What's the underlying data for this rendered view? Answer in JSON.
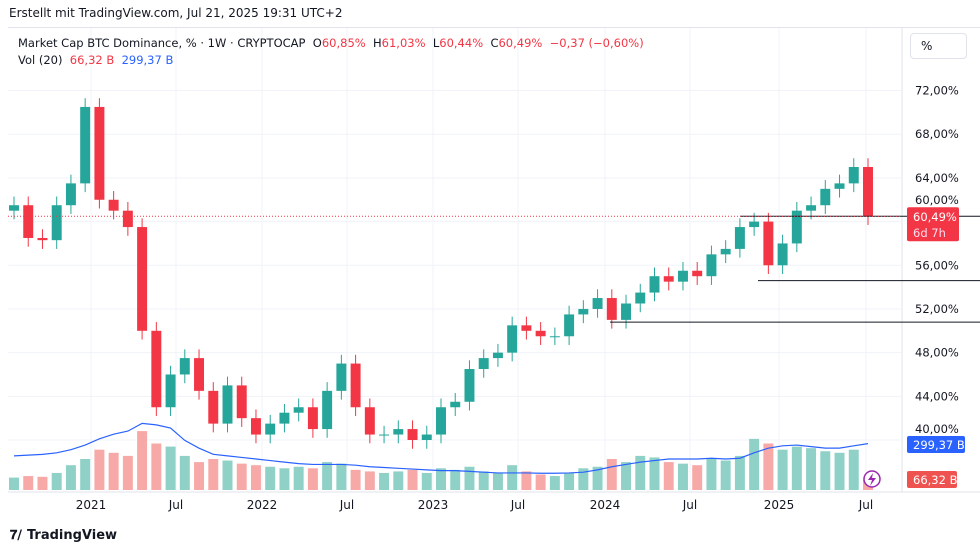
{
  "credit": "Erstellt mit TradingView.com, Jul 21, 2025 19:31 UTC+2",
  "legend": {
    "symbol": "Market Cap BTC Dominance, % · 1W · CRYPTOCAP",
    "o_label": "O",
    "o": "60,85%",
    "h_label": "H",
    "h": "61,03%",
    "l_label": "L",
    "l": "60,44%",
    "c_label": "C",
    "c": "60,49%",
    "change": "−0,37 (−0,60%)",
    "vol_label": "Vol (20)",
    "vol": "66,32 B",
    "vol_ma": "299,37 B"
  },
  "scale_button": "%",
  "footer": {
    "brand": "TradingView"
  },
  "price_tag": {
    "value": "60,49%",
    "countdown": "6d 7h"
  },
  "vol_ma_tag": "299,37 B",
  "vol_tag": "66,32 B",
  "colors": {
    "up": "#26a69a",
    "down": "#f23645",
    "vol_up": "#8fd0c7",
    "vol_down": "#f7a9a7",
    "ma": "#2962ff"
  },
  "chart_data": {
    "type": "candlestick",
    "y_ticks": [
      "72,00%",
      "68,00%",
      "64,00%",
      "60,00%",
      "56,00%",
      "52,00%",
      "48,00%",
      "44,00%",
      "40,00%"
    ],
    "x_ticks": [
      "2021",
      "Jul",
      "2022",
      "Jul",
      "2023",
      "Jul",
      "2024",
      "Jul",
      "2025",
      "Jul"
    ],
    "ylim": [
      38,
      75
    ],
    "dates": [
      "2020-07",
      "2020-08",
      "2020-09",
      "2020-10",
      "2020-11",
      "2020-12",
      "2021-01",
      "2021-02",
      "2021-03",
      "2021-04",
      "2021-05",
      "2021-06",
      "2021-07",
      "2021-08",
      "2021-09",
      "2021-10",
      "2021-11",
      "2021-12",
      "2022-01",
      "2022-02",
      "2022-03",
      "2022-04",
      "2022-05",
      "2022-06",
      "2022-07",
      "2022-08",
      "2022-09",
      "2022-10",
      "2022-11",
      "2022-12",
      "2023-01",
      "2023-02",
      "2023-03",
      "2023-04",
      "2023-05",
      "2023-06",
      "2023-07",
      "2023-08",
      "2023-09",
      "2023-10",
      "2023-11",
      "2023-12",
      "2024-01",
      "2024-02",
      "2024-03",
      "2024-04",
      "2024-05",
      "2024-06",
      "2024-07",
      "2024-08",
      "2024-09",
      "2024-10",
      "2024-11",
      "2024-12",
      "2025-01",
      "2025-02",
      "2025-03",
      "2025-04",
      "2025-05",
      "2025-06",
      "2025-07"
    ],
    "close": [
      61.5,
      58.5,
      58.3,
      61.5,
      63.5,
      70.5,
      62,
      61,
      59.5,
      50,
      43,
      46,
      47.5,
      44.5,
      41.5,
      45,
      42,
      40.5,
      41.5,
      42.5,
      43,
      41,
      44.5,
      47,
      43,
      40.5,
      40.5,
      41,
      40,
      40.5,
      43,
      43.5,
      46.5,
      47.5,
      48,
      50.5,
      50,
      49.5,
      49.5,
      51.5,
      52,
      53,
      51,
      52.5,
      53.5,
      55,
      54.5,
      55.5,
      55,
      57,
      57.5,
      59.5,
      60,
      56,
      58,
      61,
      61.5,
      63,
      63.5,
      65,
      60.49
    ],
    "volume_b": [
      80,
      90,
      85,
      110,
      160,
      200,
      260,
      240,
      220,
      380,
      300,
      280,
      220,
      180,
      200,
      190,
      170,
      160,
      150,
      140,
      150,
      140,
      180,
      170,
      130,
      120,
      110,
      120,
      130,
      110,
      140,
      130,
      150,
      120,
      110,
      160,
      120,
      100,
      90,
      110,
      140,
      150,
      200,
      180,
      220,
      210,
      180,
      170,
      160,
      200,
      190,
      220,
      330,
      300,
      260,
      280,
      270,
      250,
      240,
      260,
      66.32
    ],
    "volume_ma_b": [
      220,
      225,
      230,
      240,
      260,
      290,
      330,
      360,
      380,
      430,
      420,
      400,
      320,
      270,
      230,
      220,
      210,
      200,
      190,
      180,
      170,
      165,
      165,
      165,
      160,
      150,
      145,
      140,
      135,
      130,
      125,
      125,
      120,
      115,
      110,
      110,
      110,
      108,
      108,
      110,
      115,
      130,
      150,
      165,
      180,
      190,
      200,
      200,
      200,
      205,
      200,
      205,
      240,
      270,
      285,
      290,
      280,
      270,
      270,
      285,
      299.37
    ],
    "lines": [
      {
        "level": 60.49
      },
      {
        "level": 54.6
      },
      {
        "level": 50.8
      }
    ]
  }
}
